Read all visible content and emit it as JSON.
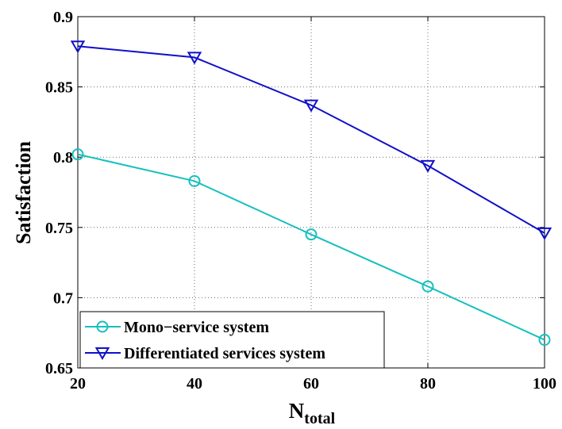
{
  "chart_data": {
    "type": "line",
    "xlabel": "N",
    "xlabel_sub": "total",
    "ylabel": "Satisfaction",
    "xlim": [
      20,
      100
    ],
    "ylim": [
      0.65,
      0.9
    ],
    "xticks": [
      20,
      40,
      60,
      80,
      100
    ],
    "yticks": [
      0.65,
      0.7,
      0.75,
      0.8,
      0.85,
      0.9
    ],
    "xtick_labels": [
      "20",
      "40",
      "60",
      "80",
      "100"
    ],
    "ytick_labels": [
      "0.65",
      "0.7",
      "0.75",
      "0.8",
      "0.85",
      "0.9"
    ],
    "grid": true,
    "legend_position": "bottom-left",
    "x": [
      20,
      40,
      60,
      80,
      100
    ],
    "series": [
      {
        "name": "Mono−service system",
        "values": [
          0.802,
          0.783,
          0.745,
          0.708,
          0.67
        ],
        "color": "#17bfbf",
        "marker": "circle"
      },
      {
        "name": "Differentiated services system",
        "values": [
          0.879,
          0.871,
          0.837,
          0.794,
          0.746
        ],
        "color": "#1010c8",
        "marker": "triangle-down"
      }
    ]
  }
}
